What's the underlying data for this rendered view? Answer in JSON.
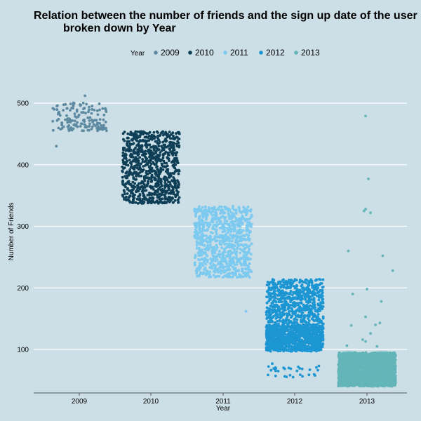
{
  "chart_data": {
    "type": "scatter",
    "title_line1": "Relation between the number of friends and the sign up date of the user",
    "title_line2": "broken down by Year",
    "xlabel": "Year",
    "ylabel": "Number of Friends",
    "categories": [
      "2009",
      "2010",
      "2011",
      "2012",
      "2013"
    ],
    "y_ticks": [
      100,
      200,
      300,
      400,
      500
    ],
    "ylim": [
      30,
      520
    ],
    "grid": true,
    "legend_position": "top",
    "legend": {
      "title": "Year",
      "entries": [
        "2009",
        "2010",
        "2011",
        "2012",
        "2013"
      ]
    },
    "colors": {
      "2009": "#5d8aa0",
      "2010": "#0f3f56",
      "2011": "#7ccaf0",
      "2012": "#1c96d3",
      "2013": "#63b5b8",
      "background": "#ccdee6",
      "grid": "#ffffff"
    },
    "series": [
      {
        "name": "2009",
        "clusters": [
          {
            "y_min": 455,
            "y_max": 502,
            "n": 110,
            "x_spread": 0.38
          },
          {
            "y_min": 455,
            "y_max": 475,
            "n": 40,
            "x_spread": 0.38
          }
        ],
        "points": [
          [
            0.08,
            512
          ],
          [
            -0.32,
            430
          ]
        ]
      },
      {
        "name": "2010",
        "clusters": [
          {
            "y_min": 337,
            "y_max": 454,
            "n": 900,
            "x_spread": 0.4
          }
        ],
        "points": []
      },
      {
        "name": "2011",
        "clusters": [
          {
            "y_min": 217,
            "y_max": 333,
            "n": 850,
            "x_spread": 0.4
          }
        ],
        "points": [
          [
            0.32,
            162
          ]
        ]
      },
      {
        "name": "2012",
        "clusters": [
          {
            "y_min": 97,
            "y_max": 214,
            "n": 1100,
            "x_spread": 0.4
          },
          {
            "y_min": 97,
            "y_max": 140,
            "n": 600,
            "x_spread": 0.4
          },
          {
            "y_min": 55,
            "y_max": 77,
            "n": 32,
            "x_spread": 0.38
          }
        ],
        "points": []
      },
      {
        "name": "2013",
        "clusters": [
          {
            "y_min": 40,
            "y_max": 95,
            "n": 2600,
            "x_spread": 0.4
          }
        ],
        "points": [
          [
            -0.02,
            479
          ],
          [
            0.02,
            377
          ],
          [
            -0.04,
            325
          ],
          [
            -0.02,
            328
          ],
          [
            0.05,
            322
          ],
          [
            -0.26,
            260
          ],
          [
            0.22,
            252
          ],
          [
            0.36,
            228
          ],
          [
            0.0,
            198
          ],
          [
            -0.2,
            190
          ],
          [
            0.2,
            178
          ],
          [
            -0.02,
            153
          ],
          [
            0.18,
            143
          ],
          [
            0.12,
            140
          ],
          [
            -0.22,
            139
          ],
          [
            0.05,
            126
          ],
          [
            -0.06,
            116
          ],
          [
            -0.02,
            113
          ],
          [
            -0.28,
            106
          ],
          [
            0.14,
            105
          ]
        ]
      }
    ]
  }
}
